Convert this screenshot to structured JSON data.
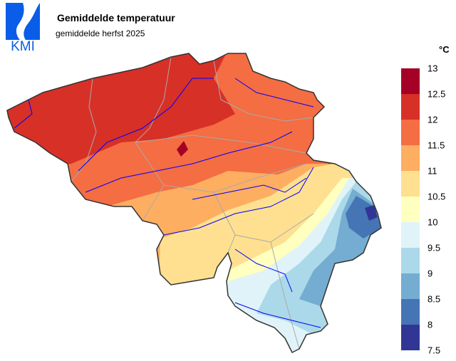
{
  "header": {
    "logo_text": "KMI",
    "title": "Gemiddelde temperatuur",
    "subtitle": "gemiddelde herfst 2025"
  },
  "legend": {
    "unit": "°C",
    "labels": [
      "13",
      "12.5",
      "12",
      "11.5",
      "11",
      "10.5",
      "10",
      "9.5",
      "9",
      "8.5",
      "8",
      "7.5"
    ],
    "colors": [
      "#a50026",
      "#d73027",
      "#f46d43",
      "#fdae61",
      "#fee090",
      "#ffffbf",
      "#e0f3f8",
      "#abd9e9",
      "#74add1",
      "#4575b4",
      "#313695"
    ]
  },
  "map": {
    "region": "Belgium",
    "variable": "mean temperature",
    "range_celsius": [
      7.5,
      13
    ],
    "border_color": "#333333",
    "province_border_color": "#aaaaaa",
    "river_color": "#0000ff"
  }
}
